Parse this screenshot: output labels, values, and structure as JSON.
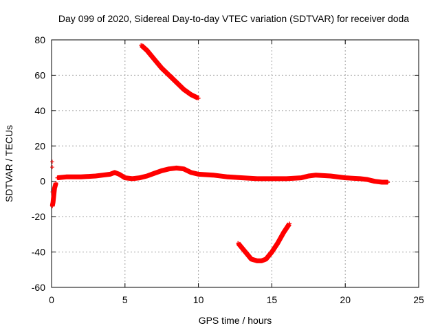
{
  "chart_data": {
    "type": "scatter",
    "title": "Day 099 of 2020, Sidereal Day-to-day VTEC variation (SDTVAR) for receiver doda",
    "xlabel": "GPS time / hours",
    "ylabel": "SDTVAR / TECUs",
    "xlim": [
      0,
      25
    ],
    "ylim": [
      -60,
      80
    ],
    "xticks": [
      0,
      5,
      10,
      15,
      20,
      25
    ],
    "yticks": [
      -60,
      -40,
      -20,
      0,
      20,
      40,
      60,
      80
    ],
    "grid": true,
    "legend": "none",
    "series": [
      {
        "name": "main band",
        "color": "#ff0000",
        "x": [
          0.4,
          1,
          2,
          3,
          3.5,
          4,
          4.3,
          4.6,
          5,
          5.5,
          6,
          6.5,
          7,
          7.5,
          8,
          8.5,
          9,
          9.5,
          10,
          11,
          12,
          13,
          14,
          15,
          16,
          17,
          17.5,
          18,
          19,
          20,
          21,
          21.5,
          22,
          22.5,
          22.9
        ],
        "y": [
          2,
          2.5,
          2.5,
          3,
          3.5,
          4,
          5,
          4,
          2,
          1.5,
          2,
          3,
          4.5,
          6,
          7,
          7.5,
          7,
          5,
          4,
          3.5,
          2.5,
          2,
          1.5,
          1.5,
          1.5,
          2,
          3,
          3.5,
          3,
          2,
          1.5,
          1,
          0,
          -0.5,
          -0.5
        ]
      },
      {
        "name": "early segment",
        "color": "#ff0000",
        "x": [
          0.05,
          0.1,
          0.15,
          0.2,
          0.3
        ],
        "y": [
          -14,
          -12,
          -8,
          -4,
          -1
        ]
      },
      {
        "name": "upper arc",
        "color": "#ff0000",
        "x": [
          6.1,
          6.5,
          7,
          7.5,
          8,
          8.5,
          9,
          9.5,
          10
        ],
        "y": [
          77,
          74,
          69,
          64,
          60,
          56,
          52,
          49,
          47
        ]
      },
      {
        "name": "lower arc",
        "color": "#ff0000",
        "x": [
          12.7,
          13.2,
          13.6,
          14,
          14.3,
          14.6,
          15,
          15.4,
          15.8,
          16.2
        ],
        "y": [
          -35,
          -40,
          -44,
          -45,
          -45,
          -44,
          -40,
          -35,
          -29,
          -24
        ]
      }
    ],
    "outliers": {
      "color": "#ff0000",
      "x": [
        0,
        0,
        0,
        0.02
      ],
      "y": [
        11,
        8,
        -13,
        -6
      ]
    }
  }
}
